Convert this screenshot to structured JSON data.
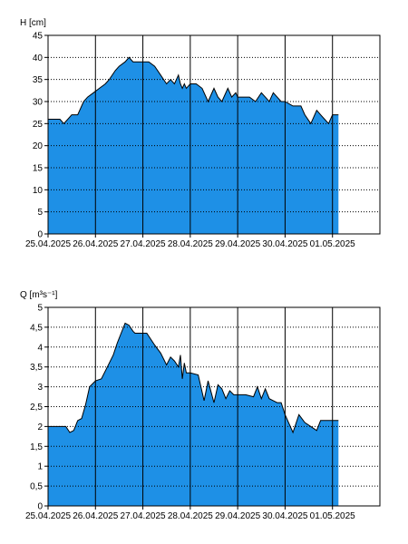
{
  "colors": {
    "fill": "#1e90e6",
    "outline": "#000000",
    "grid": "#000000",
    "background": "#ffffff"
  },
  "chart_data": [
    {
      "type": "area",
      "title": "",
      "ylabel": "H [cm]",
      "xlabel": "",
      "ylim": [
        0,
        45
      ],
      "yticks": [
        0,
        5,
        10,
        15,
        20,
        25,
        30,
        35,
        40,
        45
      ],
      "ytick_labels": [
        "0",
        "5",
        "10",
        "15",
        "20",
        "25",
        "30",
        "35",
        "40",
        "45"
      ],
      "xlim": [
        "25.04.2025 00:00",
        "02.05.2025 00:00"
      ],
      "xtick_labels": [
        "25.04.2025",
        "26.04.2025",
        "27.04.2025",
        "28.04.2025",
        "29.04.2025",
        "30.04.2025",
        "01.05.2025"
      ],
      "vertical_grid": "solid lines at midnight of each day",
      "horizontal_grid": "dotted",
      "legend": "none",
      "series": [
        {
          "x": [
            "25.04.2025 00:00",
            "25.04.2025 06:00",
            "25.04.2025 08:00",
            "25.04.2025 10:00",
            "25.04.2025 12:00",
            "25.04.2025 15:00",
            "25.04.2025 18:00",
            "25.04.2025 20:00",
            "25.04.2025 23:00",
            "26.04.2025 02:00",
            "26.04.2025 05:00",
            "26.04.2025 07:00",
            "26.04.2025 10:00",
            "26.04.2025 12:00",
            "26.04.2025 15:00",
            "26.04.2025 17:00",
            "26.04.2025 19:00",
            "27.04.2025 00:00",
            "27.04.2025 03:00",
            "27.04.2025 06:00",
            "27.04.2025 09:00",
            "27.04.2025 12:00",
            "27.04.2025 14:00",
            "27.04.2025 16:00",
            "27.04.2025 18:00",
            "27.04.2025 19:00",
            "27.04.2025 20:00",
            "27.04.2025 21:00",
            "27.04.2025 22:00",
            "28.04.2025 00:00",
            "28.04.2025 03:00",
            "28.04.2025 06:00",
            "28.04.2025 09:00",
            "28.04.2025 12:00",
            "28.04.2025 14:00",
            "28.04.2025 16:00",
            "28.04.2025 19:00",
            "28.04.2025 21:00",
            "28.04.2025 23:00",
            "29.04.2025 00:00",
            "29.04.2025 03:00",
            "29.04.2025 06:00",
            "29.04.2025 09:00",
            "29.04.2025 12:00",
            "29.04.2025 14:00",
            "29.04.2025 16:00",
            "29.04.2025 18:00",
            "29.04.2025 20:00",
            "29.04.2025 22:00",
            "30.04.2025 00:00",
            "30.04.2025 04:00",
            "30.04.2025 08:00",
            "30.04.2025 10:00",
            "30.04.2025 13:00",
            "30.04.2025 16:00",
            "30.04.2025 18:00",
            "30.04.2025 20:00",
            "30.04.2025 22:00",
            "01.05.2025 00:00",
            "01.05.2025 03:00"
          ],
          "values": [
            26,
            26,
            25,
            26,
            27,
            27,
            30,
            31,
            32,
            33,
            34,
            35,
            37,
            38,
            39,
            40,
            39,
            39,
            39,
            38,
            36,
            34,
            35,
            34,
            36,
            34,
            33,
            34,
            33,
            34,
            34,
            33,
            30,
            33,
            31,
            30,
            33,
            31,
            32,
            31,
            31,
            31,
            30,
            32,
            31,
            30,
            32,
            31,
            30,
            30,
            29,
            29,
            27,
            25,
            28,
            27,
            26,
            25,
            27,
            27
          ]
        }
      ]
    },
    {
      "type": "area",
      "title": "",
      "ylabel": "Q [m³s⁻¹]",
      "xlabel": "",
      "ylim": [
        0,
        5
      ],
      "yticks": [
        0,
        0.5,
        1,
        1.5,
        2,
        2.5,
        3,
        3.5,
        4,
        4.5,
        5
      ],
      "ytick_labels": [
        "0",
        "0,5",
        "1",
        "1,5",
        "2",
        "2,5",
        "3",
        "3,5",
        "4",
        "4,5",
        "5"
      ],
      "xlim": [
        "25.04.2025 00:00",
        "02.05.2025 00:00"
      ],
      "xtick_labels": [
        "25.04.2025",
        "26.04.2025",
        "27.04.2025",
        "28.04.2025",
        "29.04.2025",
        "30.04.2025",
        "01.05.2025"
      ],
      "vertical_grid": "solid lines at midnight of each day",
      "horizontal_grid": "dotted",
      "legend": "none",
      "series": [
        {
          "x": [
            "25.04.2025 00:00",
            "25.04.2025 09:00",
            "25.04.2025 11:00",
            "25.04.2025 13:00",
            "25.04.2025 15:00",
            "25.04.2025 17:00",
            "25.04.2025 19:00",
            "25.04.2025 21:00",
            "26.04.2025 00:00",
            "26.04.2025 03:00",
            "26.04.2025 06:00",
            "26.04.2025 09:00",
            "26.04.2025 11:00",
            "26.04.2025 13:00",
            "26.04.2025 15:00",
            "26.04.2025 17:00",
            "26.04.2025 19:00",
            "26.04.2025 20:00",
            "26.04.2025 22:00",
            "27.04.2025 02:00",
            "27.04.2025 06:00",
            "27.04.2025 09:00",
            "27.04.2025 12:00",
            "27.04.2025 14:00",
            "27.04.2025 16:00",
            "27.04.2025 18:00",
            "27.04.2025 19:00",
            "27.04.2025 20:00",
            "27.04.2025 21:00",
            "27.04.2025 22:00",
            "28.04.2025 00:00",
            "28.04.2025 04:00",
            "28.04.2025 07:00",
            "28.04.2025 09:00",
            "28.04.2025 12:00",
            "28.04.2025 14:00",
            "28.04.2025 16:00",
            "28.04.2025 18:00",
            "28.04.2025 20:00",
            "28.04.2025 22:00",
            "29.04.2025 00:00",
            "29.04.2025 04:00",
            "29.04.2025 08:00",
            "29.04.2025 10:00",
            "29.04.2025 12:00",
            "29.04.2025 14:00",
            "29.04.2025 16:00",
            "29.04.2025 18:00",
            "29.04.2025 20:00",
            "29.04.2025 22:00",
            "30.04.2025 00:00",
            "30.04.2025 04:00",
            "30.04.2025 07:00",
            "30.04.2025 10:00",
            "30.04.2025 13:00",
            "30.04.2025 16:00",
            "30.04.2025 18:00",
            "30.04.2025 20:00",
            "30.04.2025 22:00",
            "01.05.2025 00:00",
            "01.05.2025 03:00"
          ],
          "values": [
            2,
            2,
            1.85,
            1.9,
            2.15,
            2.2,
            2.55,
            3,
            3.15,
            3.2,
            3.5,
            3.8,
            4.1,
            4.35,
            4.6,
            4.55,
            4.4,
            4.35,
            4.35,
            4.35,
            4.05,
            3.85,
            3.55,
            3.75,
            3.65,
            3.5,
            3.8,
            3.2,
            3.6,
            3.35,
            3.35,
            3.3,
            2.65,
            3.15,
            2.6,
            3.05,
            2.95,
            2.7,
            2.9,
            2.8,
            2.8,
            2.8,
            2.75,
            3.0,
            2.7,
            2.95,
            2.7,
            2.65,
            2.6,
            2.6,
            2.3,
            1.85,
            2.3,
            2.1,
            2.0,
            1.9,
            2.15,
            2.15,
            2.15,
            2.15,
            2.15
          ]
        }
      ]
    }
  ]
}
